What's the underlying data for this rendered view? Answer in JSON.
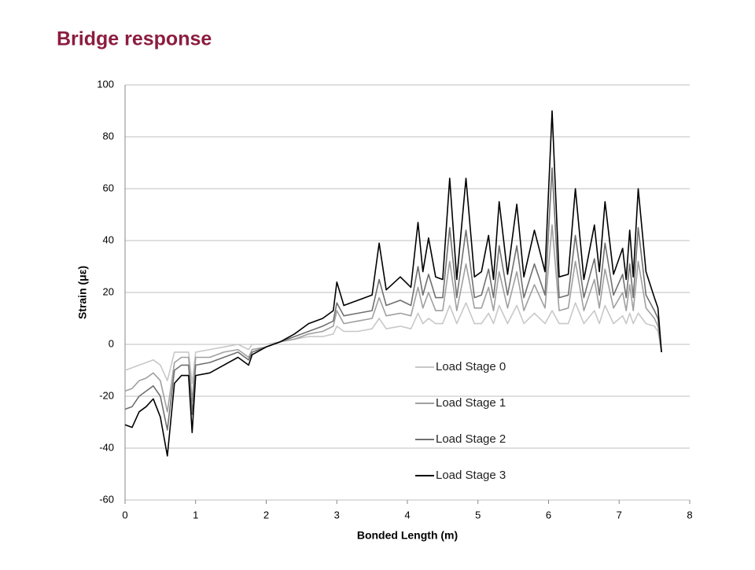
{
  "chart_data": {
    "type": "line",
    "title": "Bridge response",
    "xlabel": "Bonded Length (m)",
    "ylabel": "Strain (με)",
    "xlim": [
      0,
      8
    ],
    "xticks": [
      0,
      1,
      2,
      3,
      4,
      5,
      6,
      7,
      8
    ],
    "ylim": [
      -60,
      100
    ],
    "yticks": [
      -60,
      -40,
      -20,
      0,
      20,
      40,
      60,
      80,
      100
    ],
    "grid": true,
    "legend": "center",
    "x": [
      0,
      0.1,
      0.2,
      0.3,
      0.4,
      0.5,
      0.6,
      0.7,
      0.8,
      0.9,
      0.95,
      1.0,
      1.2,
      1.4,
      1.6,
      1.75,
      1.8,
      2.0,
      2.2,
      2.4,
      2.6,
      2.8,
      2.95,
      3.0,
      3.1,
      3.3,
      3.5,
      3.6,
      3.7,
      3.9,
      4.05,
      4.15,
      4.22,
      4.3,
      4.4,
      4.5,
      4.6,
      4.7,
      4.83,
      4.95,
      5.05,
      5.15,
      5.22,
      5.3,
      5.42,
      5.55,
      5.65,
      5.8,
      5.95,
      6.05,
      6.15,
      6.28,
      6.38,
      6.5,
      6.65,
      6.72,
      6.8,
      6.92,
      7.05,
      7.1,
      7.15,
      7.2,
      7.27,
      7.38,
      7.5,
      7.55,
      7.6
    ],
    "series": [
      {
        "name": "Load Stage 0",
        "color": "#c8c8c8",
        "values": [
          -10,
          -9,
          -8,
          -7,
          -6,
          -8,
          -14,
          -3,
          -3,
          -3,
          -15,
          -3,
          -2,
          -1,
          0,
          -2,
          0,
          0,
          1,
          2,
          3,
          3,
          4,
          7,
          5,
          5,
          6,
          10,
          6,
          7,
          6,
          12,
          8,
          10,
          8,
          8,
          15,
          8,
          16,
          8,
          8,
          12,
          8,
          15,
          8,
          15,
          8,
          12,
          8,
          13,
          8,
          8,
          16,
          8,
          13,
          8,
          15,
          8,
          11,
          8,
          12,
          8,
          12,
          8,
          7,
          5,
          -3
        ]
      },
      {
        "name": "Load Stage 1",
        "color": "#a0a0a0",
        "values": [
          -18,
          -17,
          -14,
          -13,
          -11,
          -14,
          -26,
          -7,
          -5,
          -5,
          -22,
          -5,
          -5,
          -3,
          -2,
          -5,
          -2,
          -1,
          1,
          2,
          4,
          5,
          7,
          13,
          8,
          9,
          10,
          18,
          11,
          12,
          11,
          22,
          14,
          20,
          13,
          13,
          32,
          13,
          31,
          14,
          14,
          22,
          13,
          28,
          14,
          28,
          13,
          23,
          14,
          46,
          13,
          14,
          32,
          13,
          25,
          14,
          29,
          14,
          20,
          13,
          23,
          13,
          32,
          14,
          10,
          7,
          -3
        ]
      },
      {
        "name": "Load Stage 2",
        "color": "#707070",
        "values": [
          -25,
          -24,
          -20,
          -18,
          -16,
          -20,
          -33,
          -10,
          -8,
          -8,
          -27,
          -8,
          -7,
          -5,
          -3,
          -6,
          -3,
          -1,
          1,
          3,
          5,
          7,
          9,
          16,
          11,
          12,
          13,
          25,
          15,
          17,
          15,
          30,
          19,
          27,
          18,
          18,
          45,
          18,
          44,
          18,
          19,
          29,
          18,
          38,
          19,
          38,
          18,
          31,
          19,
          68,
          18,
          19,
          42,
          18,
          33,
          19,
          39,
          19,
          27,
          18,
          31,
          18,
          45,
          19,
          13,
          10,
          -3
        ]
      },
      {
        "name": "Load Stage 3",
        "color": "#000000",
        "values": [
          -31,
          -32,
          -26,
          -24,
          -21,
          -28,
          -43,
          -15,
          -12,
          -12,
          -34,
          -12,
          -11,
          -8,
          -5,
          -8,
          -4,
          -1,
          1,
          4,
          8,
          10,
          13,
          24,
          15,
          17,
          19,
          39,
          21,
          26,
          22,
          47,
          28,
          41,
          26,
          25,
          64,
          25,
          64,
          26,
          28,
          42,
          25,
          55,
          27,
          54,
          26,
          44,
          28,
          90,
          26,
          27,
          60,
          25,
          46,
          28,
          55,
          27,
          37,
          25,
          44,
          26,
          60,
          28,
          18,
          14,
          -3
        ]
      }
    ]
  }
}
